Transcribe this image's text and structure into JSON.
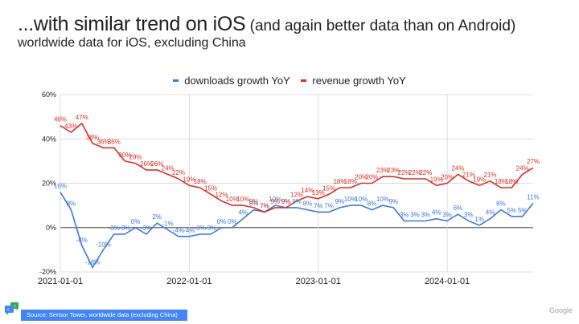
{
  "header": {
    "title_main": "...with similar trend on iOS",
    "title_aside": " (and again better data than on Android)",
    "subtitle": "worldwide data for  iOS, excluding China"
  },
  "footer": {
    "source": "Source: Sensor Tower, worldwide data (excluding China)",
    "brand": "Google"
  },
  "chart_data": {
    "type": "line",
    "title": "",
    "xlabel": "",
    "ylabel": "",
    "ylim": [
      -20,
      60
    ],
    "yticks": [
      -20,
      0,
      20,
      40,
      60
    ],
    "ytick_labels": [
      "-20%",
      "0%",
      "20%",
      "40%",
      "60%"
    ],
    "xticks": [
      "2021-01-01",
      "2022-01-01",
      "2023-01-01",
      "2024-01-01"
    ],
    "xtick_index": [
      0,
      12,
      24,
      36
    ],
    "x_start": "2021-01",
    "x_end": "2024-09",
    "x_frequency": "monthly",
    "grid": true,
    "legend": "top-center",
    "series": [
      {
        "name": "downloads growth YoY",
        "color": "#3c78d8",
        "values": [
          16,
          8,
          -8,
          -18,
          -10,
          -3,
          -3,
          0,
          -3,
          2,
          -1,
          -4,
          -4,
          -3,
          -3,
          0,
          0,
          4,
          8,
          7,
          10,
          9,
          9,
          8,
          7,
          7,
          9,
          10,
          10,
          8,
          10,
          9,
          3,
          3,
          3,
          4,
          3,
          6,
          3,
          1,
          4,
          8,
          5,
          5,
          11
        ]
      },
      {
        "name": "revenue growth YoY",
        "color": "#d93025",
        "values": [
          46,
          43,
          47,
          38,
          36,
          36,
          30,
          29,
          26,
          26,
          24,
          22,
          19,
          18,
          15,
          12,
          10,
          10,
          9,
          7,
          9,
          9,
          12,
          14,
          13,
          15,
          18,
          18,
          20,
          20,
          23,
          23,
          22,
          22,
          22,
          19,
          20,
          24,
          21,
          19,
          21,
          18,
          18,
          24,
          27
        ]
      }
    ]
  }
}
